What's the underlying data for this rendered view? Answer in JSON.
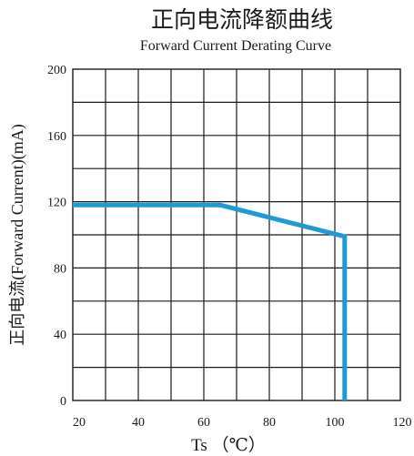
{
  "chart_data": {
    "type": "line",
    "title": "正向电流降额曲线",
    "subtitle": "Forward Current Derating Curve",
    "xlabel": "Ts （℃）",
    "ylabel": "正向电流(Forward  Current)(mA)",
    "xlim": [
      20,
      120
    ],
    "ylim": [
      0,
      200
    ],
    "x_ticks": [
      20,
      40,
      60,
      80,
      100,
      120
    ],
    "y_ticks": [
      0,
      40,
      80,
      120,
      160,
      200
    ],
    "grid": true,
    "series": [
      {
        "color": "#1e9ad6",
        "points": [
          {
            "x": 20,
            "y": 118
          },
          {
            "x": 65,
            "y": 118
          },
          {
            "x": 103,
            "y": 99
          },
          {
            "x": 103,
            "y": 0
          }
        ]
      }
    ]
  }
}
